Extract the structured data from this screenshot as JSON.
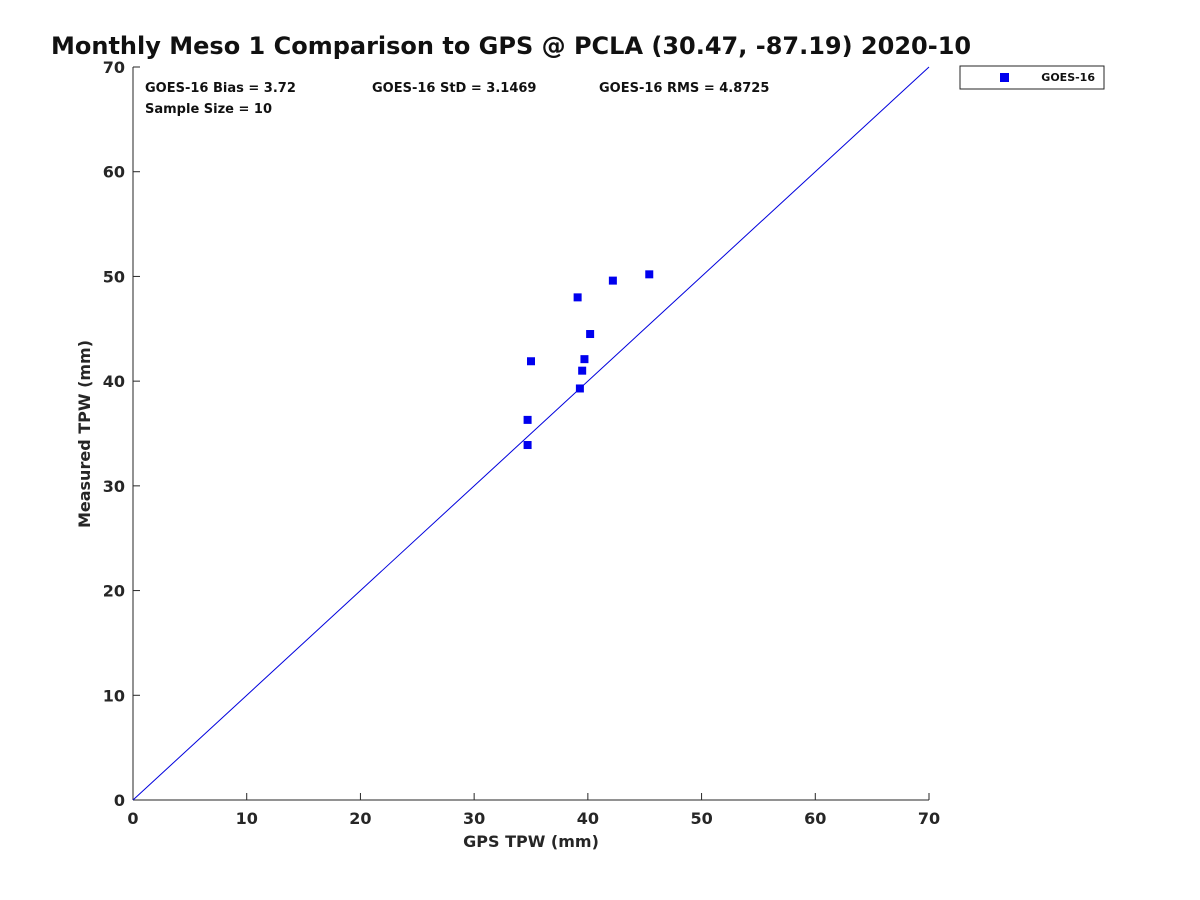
{
  "chart_data": {
    "type": "scatter",
    "title": "Monthly Meso 1 Comparison to GPS @ PCLA (30.47, -87.19) 2020-10",
    "xlabel": "GPS TPW (mm)",
    "ylabel": "Measured TPW (mm)",
    "xlim": [
      0,
      70
    ],
    "ylim": [
      0,
      70
    ],
    "x_ticks": [
      "0",
      "10",
      "20",
      "30",
      "40",
      "50",
      "60",
      "70"
    ],
    "y_ticks": [
      "0",
      "10",
      "20",
      "30",
      "40",
      "50",
      "60",
      "70"
    ],
    "grid": false,
    "legend_position": "outside-top-right",
    "annotations": {
      "bias": "GOES-16 Bias = 3.72",
      "std": "GOES-16 StD = 3.1469",
      "rms": "GOES-16 RMS = 4.8725",
      "sample_size": "Sample Size = 10"
    },
    "reference_line": {
      "x": [
        0,
        70
      ],
      "y": [
        0,
        70
      ],
      "color": "#0000dd"
    },
    "series": [
      {
        "name": "GOES-16",
        "marker": "square",
        "color": "#0000ee",
        "points": [
          {
            "x": 34.7,
            "y": 33.9
          },
          {
            "x": 34.7,
            "y": 36.3
          },
          {
            "x": 35.0,
            "y": 41.9
          },
          {
            "x": 39.1,
            "y": 48.0
          },
          {
            "x": 39.3,
            "y": 39.3
          },
          {
            "x": 39.5,
            "y": 41.0
          },
          {
            "x": 39.7,
            "y": 42.1
          },
          {
            "x": 40.2,
            "y": 44.5
          },
          {
            "x": 42.2,
            "y": 49.6
          },
          {
            "x": 45.4,
            "y": 50.2
          }
        ]
      }
    ]
  }
}
